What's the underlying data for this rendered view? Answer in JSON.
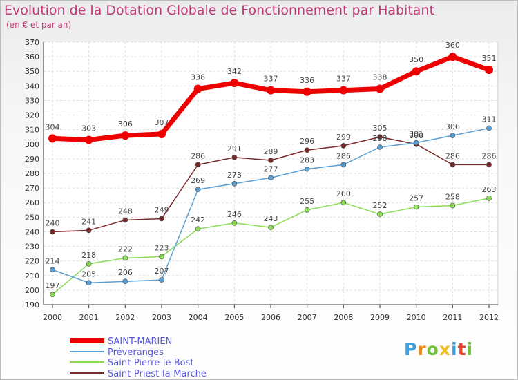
{
  "chart_data": {
    "type": "line",
    "title": "Evolution de la Dotation Globale de Fonctionnement par Habitant",
    "subtitle": "(en € et par an)",
    "xlabel": "",
    "ylabel": "",
    "ylim": [
      190,
      370
    ],
    "yticks": [
      190,
      200,
      210,
      220,
      230,
      240,
      250,
      260,
      270,
      280,
      290,
      300,
      310,
      320,
      330,
      340,
      350,
      360,
      370
    ],
    "categories": [
      "2000",
      "2001",
      "2002",
      "2003",
      "2004",
      "2005",
      "2006",
      "2007",
      "2008",
      "2009",
      "2010",
      "2011",
      "2012"
    ],
    "grid": true,
    "legend_position": "bottom-left",
    "series": [
      {
        "name": "SAINT-MARIEN",
        "color": "#ee0000",
        "values": [
          304,
          303,
          306,
          307,
          338,
          342,
          337,
          336,
          337,
          338,
          350,
          360,
          351
        ]
      },
      {
        "name": "Préveranges",
        "color": "#5a9fd4",
        "values": [
          214,
          205,
          206,
          207,
          269,
          273,
          277,
          283,
          286,
          298,
          301,
          306,
          311
        ]
      },
      {
        "name": "Saint-Pierre-le-Bost",
        "color": "#88dd55",
        "values": [
          197,
          218,
          222,
          223,
          242,
          246,
          243,
          255,
          260,
          252,
          257,
          258,
          263
        ]
      },
      {
        "name": "Saint-Priest-la-Marche",
        "color": "#7a2a2a",
        "values": [
          240,
          241,
          248,
          249,
          286,
          291,
          289,
          296,
          299,
          305,
          300,
          286,
          286
        ]
      }
    ]
  },
  "logo": {
    "letters": [
      "P",
      "r",
      "o",
      "x",
      "i",
      "t",
      "i"
    ],
    "colors": [
      "#3aa0e0",
      "#f08a18",
      "#6fc23a",
      "#f0c020",
      "#3aa0e0",
      "#e8452c",
      "#6fc23a"
    ]
  }
}
